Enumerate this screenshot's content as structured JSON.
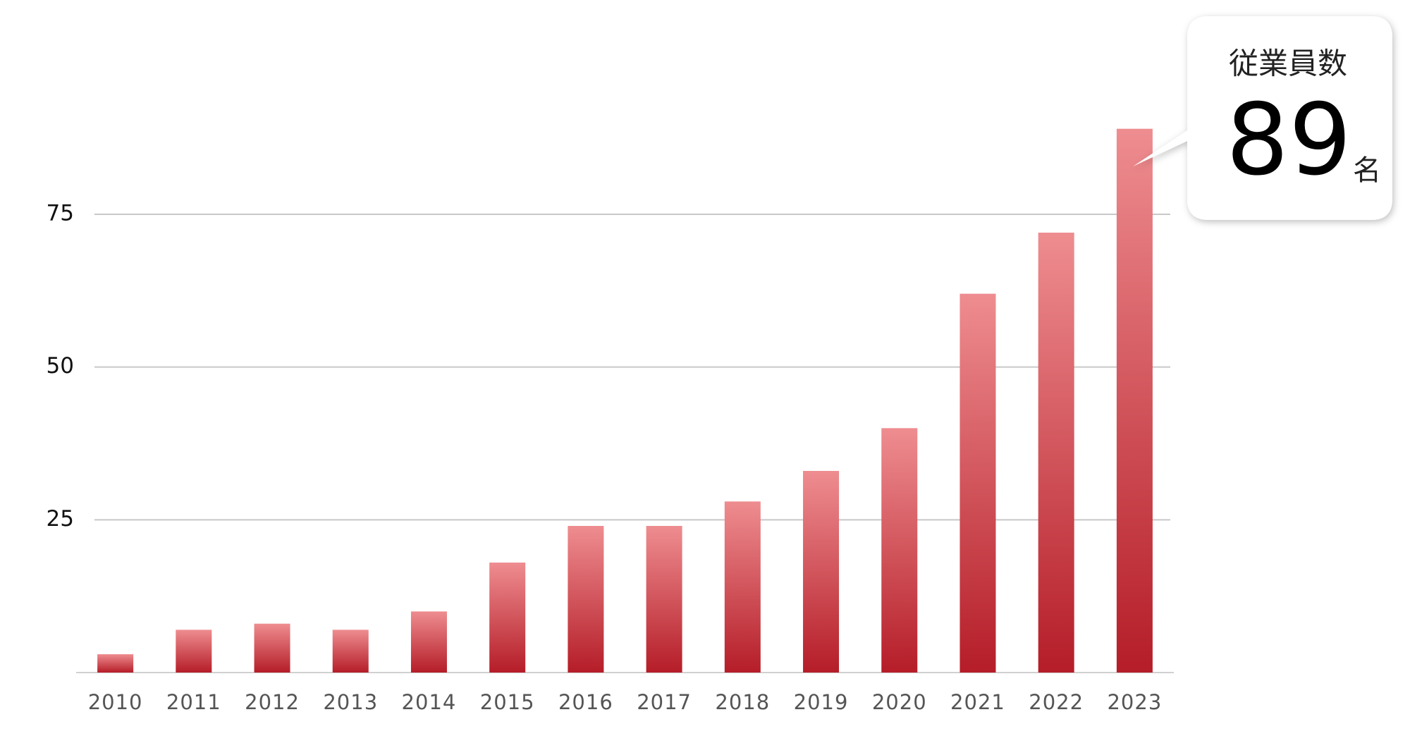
{
  "chart_data": {
    "type": "bar",
    "categories": [
      "2010",
      "2011",
      "2012",
      "2013",
      "2014",
      "2015",
      "2016",
      "2017",
      "2018",
      "2019",
      "2020",
      "2021",
      "2022",
      "2023"
    ],
    "values": [
      3,
      7,
      8,
      7,
      10,
      18,
      24,
      24,
      28,
      33,
      40,
      62,
      72,
      89
    ],
    "gradient": [
      "#ee8d90",
      "#b51d28"
    ],
    "ylim": [
      0,
      90
    ],
    "yticks": [
      25,
      50,
      75
    ],
    "grid": true,
    "callout": {
      "title": "従業員数",
      "value": 89,
      "unit": "名"
    }
  }
}
